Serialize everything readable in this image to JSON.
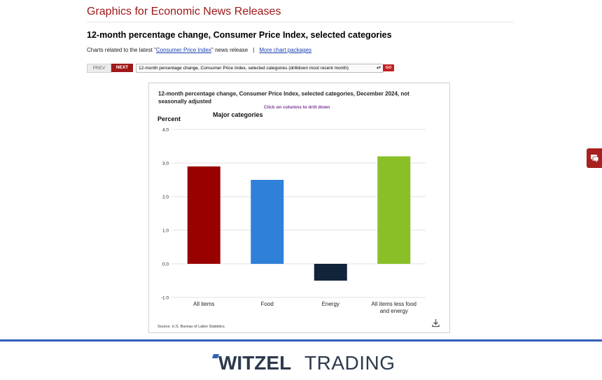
{
  "site": {
    "title": "Graphics for Economic News Releases"
  },
  "page": {
    "heading": "12-month percentage change, Consumer Price Index, selected categories",
    "related_prefix": "Charts related to the latest \"",
    "related_link": "Consumer Price Index",
    "related_suffix": "\" news release",
    "separator": "|",
    "more_link": "More chart packages"
  },
  "nav": {
    "prev_label": "PREV",
    "next_label": "NEXT",
    "select_value": "12-month percentage change, Consumer Price Index, selected categories (drilldown most recent month)",
    "go_label": "GO"
  },
  "chart_data": {
    "type": "bar",
    "title_line1": "12-month percentage change, Consumer Price Index, selected categories, December 2024, not",
    "title_line2": "seasonally adjusted",
    "subtitle": "Major categories",
    "hint": "Click on columns to drill down",
    "ylabel": "Percent",
    "ylim": [
      -1.0,
      4.0
    ],
    "yticks": [
      "4.0",
      "3.0",
      "2.0",
      "1.0",
      "0.0",
      "-1.0"
    ],
    "ytick_values": [
      4,
      3,
      2,
      1,
      0,
      -1
    ],
    "categories": [
      [
        "All items"
      ],
      [
        "Food"
      ],
      [
        "Energy"
      ],
      [
        "All items less food",
        "and energy"
      ]
    ],
    "values": [
      2.9,
      2.5,
      -0.5,
      3.2
    ],
    "colors": [
      "#990000",
      "#2f80d9",
      "#12243a",
      "#8abf28"
    ],
    "source": "Source: U.S. Bureau of Labor Statistics."
  },
  "footer": {
    "brand_part1": "WITZEL",
    "brand_part2": "TRADING"
  },
  "colors": {
    "accent_red": "#a01818",
    "footer_blue": "#2f5fb8",
    "brand_dark": "#2c3a4d"
  },
  "icons": {
    "download": "download-icon",
    "feedback": "chat-icon"
  }
}
